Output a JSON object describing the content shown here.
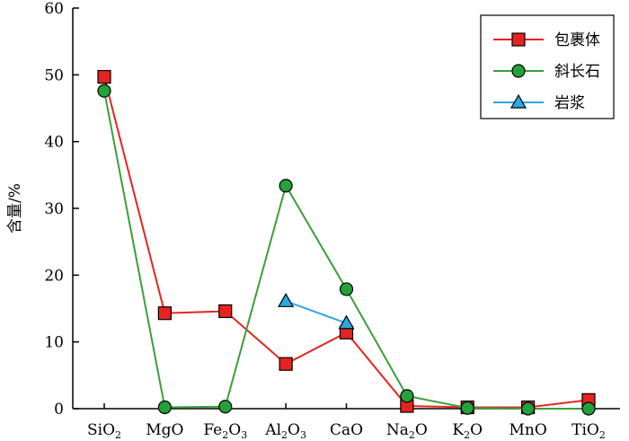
{
  "chart_data": {
    "type": "line",
    "title": "",
    "xlabel": "",
    "ylabel": "含量/%",
    "ylim": [
      0,
      60
    ],
    "yticks": [
      0,
      10,
      20,
      30,
      40,
      50,
      60
    ],
    "grid": false,
    "legend_position": "top-right",
    "categories": [
      {
        "base": "SiO",
        "sub": "2",
        "tail": ""
      },
      {
        "base": "MgO",
        "sub": "",
        "tail": ""
      },
      {
        "base": "Fe",
        "sub": "2",
        "tail": "O",
        "sub2": "3"
      },
      {
        "base": "Al",
        "sub": "2",
        "tail": "O",
        "sub2": "3"
      },
      {
        "base": "CaO",
        "sub": "",
        "tail": ""
      },
      {
        "base": "Na",
        "sub": "2",
        "tail": "O"
      },
      {
        "base": "K",
        "sub": "2",
        "tail": "O"
      },
      {
        "base": "MnO",
        "sub": "",
        "tail": ""
      },
      {
        "base": "TiO",
        "sub": "2",
        "tail": ""
      }
    ],
    "series": [
      {
        "name": "包裹体",
        "marker": "square",
        "color": "#e8231f",
        "line_color": "#e8231f",
        "values": [
          49.7,
          14.3,
          14.6,
          6.7,
          11.4,
          0.4,
          0.2,
          0.2,
          1.3
        ]
      },
      {
        "name": "斜长石",
        "marker": "circle",
        "color": "#23a13a",
        "line_color": "#3b9e3b",
        "values": [
          47.6,
          0.2,
          0.3,
          33.4,
          17.9,
          1.9,
          0.1,
          0.0,
          0.0
        ]
      },
      {
        "name": "岩浆",
        "marker": "triangle",
        "color": "#2ea8e0",
        "line_color": "#2ea8e0",
        "values": [
          null,
          null,
          null,
          16.1,
          12.8,
          null,
          null,
          null,
          null
        ]
      }
    ]
  }
}
